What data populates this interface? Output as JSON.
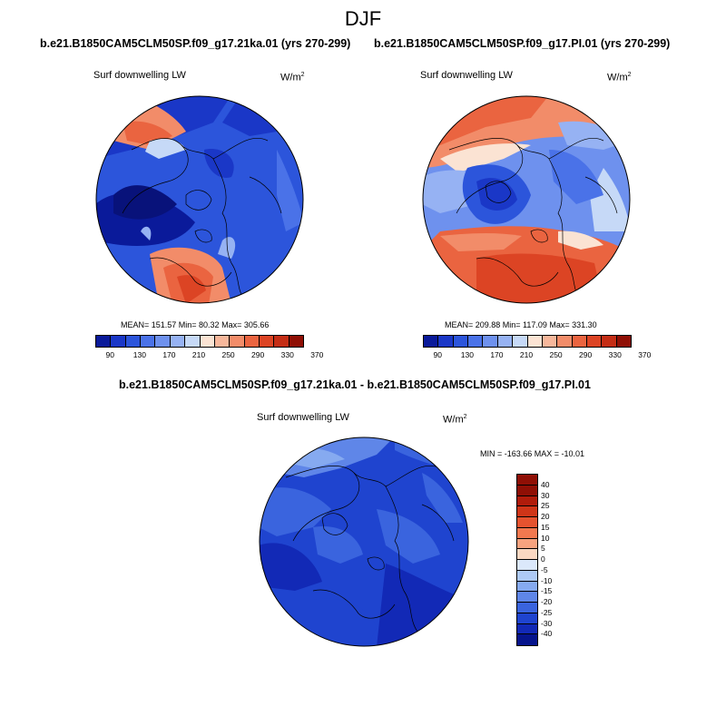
{
  "page": {
    "title": "DJF"
  },
  "panels": [
    {
      "case": "b.e21.B1850CAM5CLM50SP.f09_g17.21ka.01 (yrs 270-299)",
      "variable": "Surf downwelling LW",
      "units": "W/m",
      "units_sup": "2",
      "stats": "MEAN= 151.57  Min=  80.32  Max= 305.66"
    },
    {
      "case": "b.e21.B1850CAM5CLM50SP.f09_g17.PI.01 (yrs 270-299)",
      "variable": "Surf downwelling LW",
      "units": "W/m",
      "units_sup": "2",
      "stats": "MEAN= 209.88  Min= 117.09  Max= 331.30"
    },
    {
      "case": "b.e21.B1850CAM5CLM50SP.f09_g17.21ka.01 - b.e21.B1850CAM5CLM50SP.f09_g17.PI.01",
      "variable": "Surf downwelling LW",
      "units": "W/m",
      "units_sup": "2",
      "stats": "MIN = -163.66 MAX = -10.01"
    }
  ],
  "colorbar_abs": {
    "colors": [
      "#0a1a9a",
      "#1a37c7",
      "#2c55db",
      "#4a72e8",
      "#6e91ee",
      "#96b2f3",
      "#c6d9f7",
      "#fbe3d3",
      "#f7b79b",
      "#f28c69",
      "#ea6440",
      "#dc4424",
      "#c42d15",
      "#8f0f05"
    ],
    "ticks": [
      "90",
      "130",
      "170",
      "210",
      "250",
      "290",
      "330",
      "370"
    ]
  },
  "colorbar_diff": {
    "colors": [
      "#8f0f05",
      "#b01c0b",
      "#cf3518",
      "#e5532f",
      "#f2784f",
      "#f7a37f",
      "#fbd8c2",
      "#dbe8fb",
      "#aecaf5",
      "#86aaf0",
      "#5f86e8",
      "#3a64de",
      "#1f44cf",
      "#1229b6",
      "#06148c"
    ],
    "ticks": [
      "40",
      "30",
      "25",
      "20",
      "15",
      "10",
      "5",
      "0",
      "-5",
      "-10",
      "-15",
      "-20",
      "-25",
      "-30",
      "-40"
    ]
  },
  "legend_colors": {
    "outline": "#000000"
  }
}
